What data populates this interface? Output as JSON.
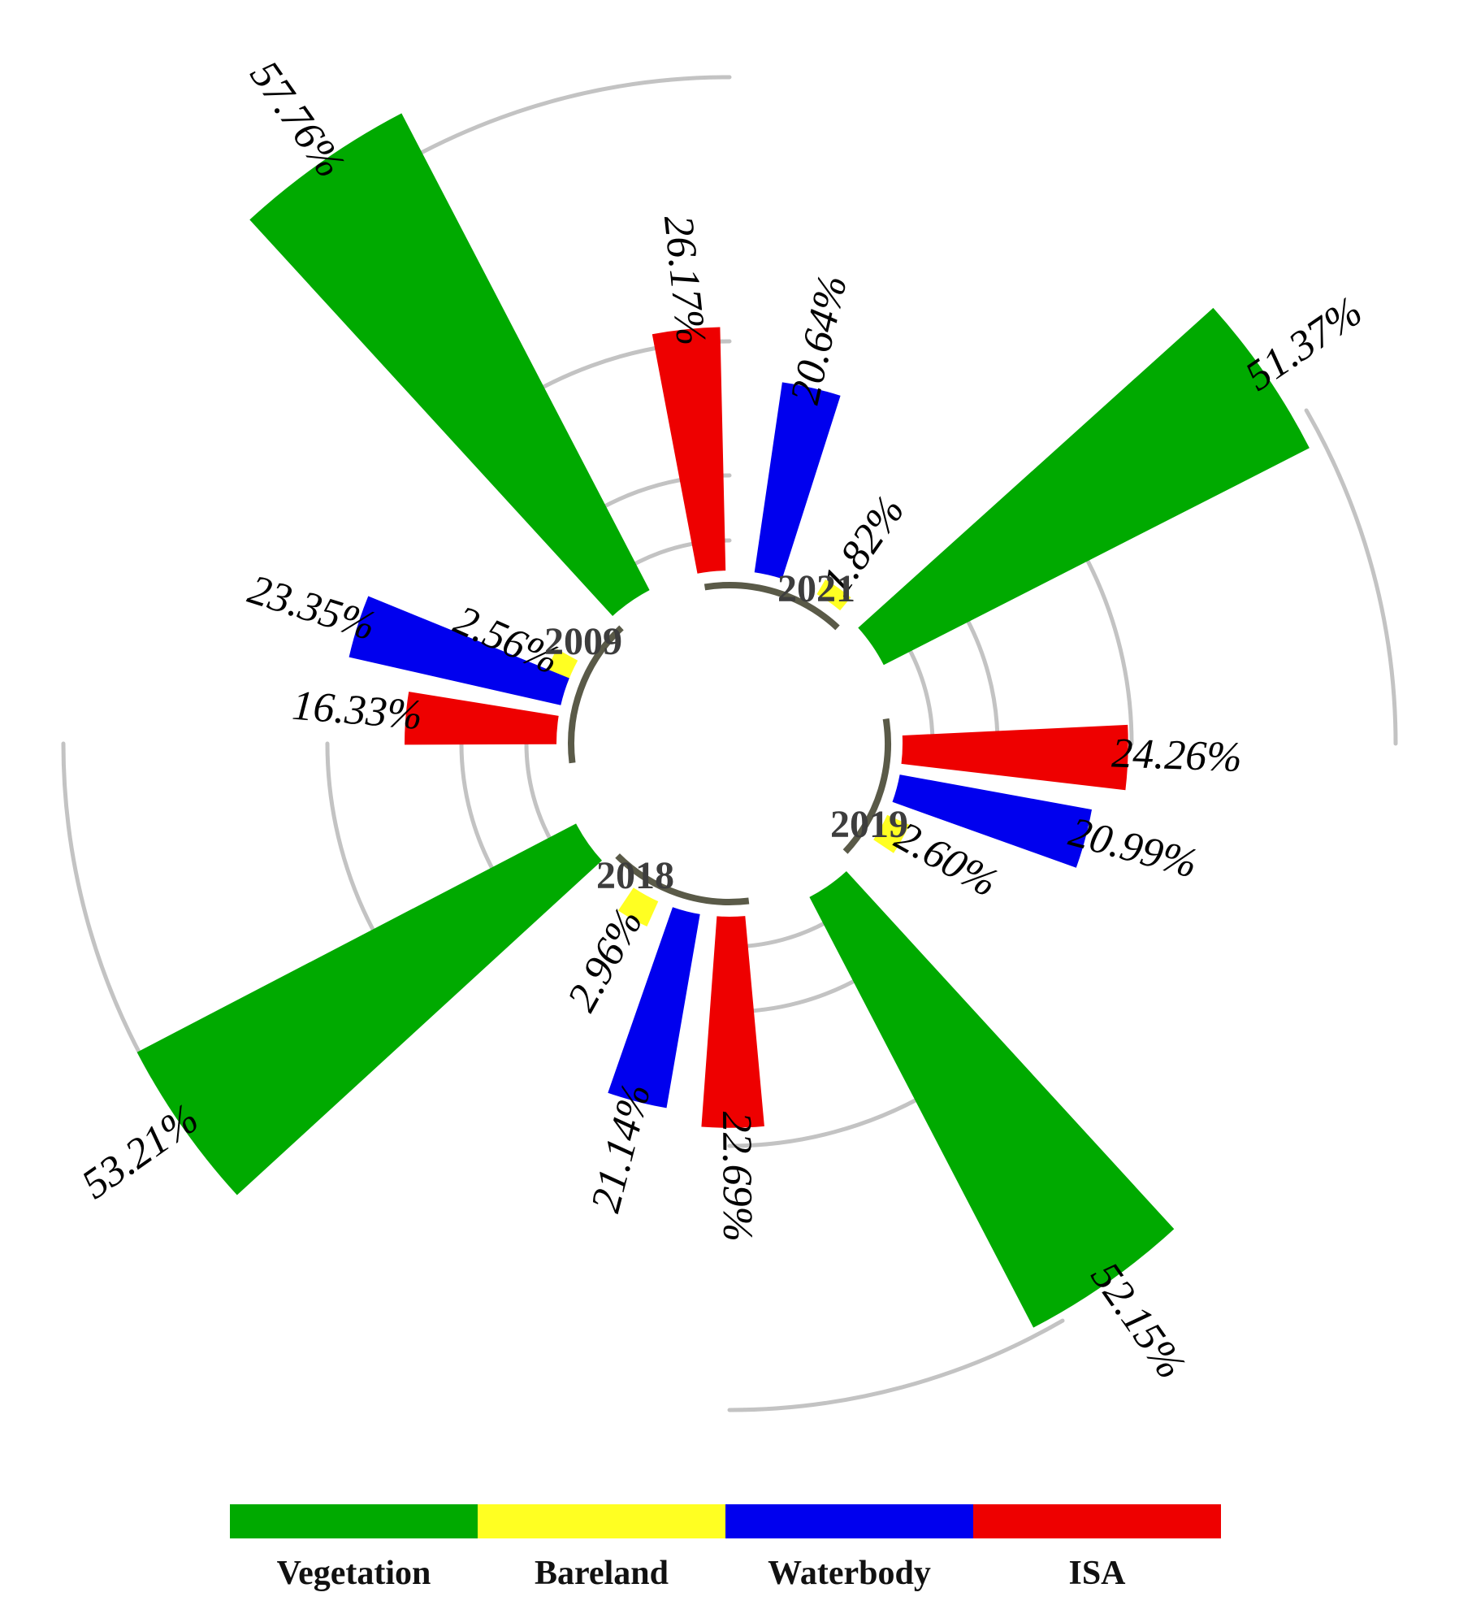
{
  "chart_data": {
    "type": "radial-bar",
    "categories": [
      "Vegetation",
      "Bareland",
      "Waterbody",
      "ISA"
    ],
    "colors": {
      "Vegetation": "#00aa00",
      "Bareland": "#ffff22",
      "Waterbody": "#0000ee",
      "ISA": "#ee0000",
      "year_arc": "#5a5a48",
      "grid": "#c3c3c3"
    },
    "groups": [
      {
        "year": "2009",
        "values": [
          57.76,
          2.56,
          23.35,
          16.33
        ],
        "labels": [
          "57.76%",
          "2.56%",
          "23.35%",
          "16.33%"
        ]
      },
      {
        "year": "2021",
        "values": [
          51.37,
          1.82,
          20.64,
          26.17
        ],
        "labels": [
          "51.37%",
          "1.82%",
          "20.64%",
          "26.17%"
        ]
      },
      {
        "year": "2019",
        "values": [
          52.15,
          2.6,
          20.99,
          24.26
        ],
        "labels": [
          "52.15%",
          "2.60%",
          "20.99%",
          "24.26%"
        ]
      },
      {
        "year": "2018",
        "values": [
          53.21,
          2.96,
          21.14,
          22.69
        ],
        "labels": [
          "53.21%",
          "2.96%",
          "21.14%",
          "22.69%"
        ]
      }
    ],
    "legend": [
      "Vegetation",
      "Bareland",
      "Waterbody",
      "ISA"
    ],
    "legend_position": "bottom",
    "grid": true
  }
}
